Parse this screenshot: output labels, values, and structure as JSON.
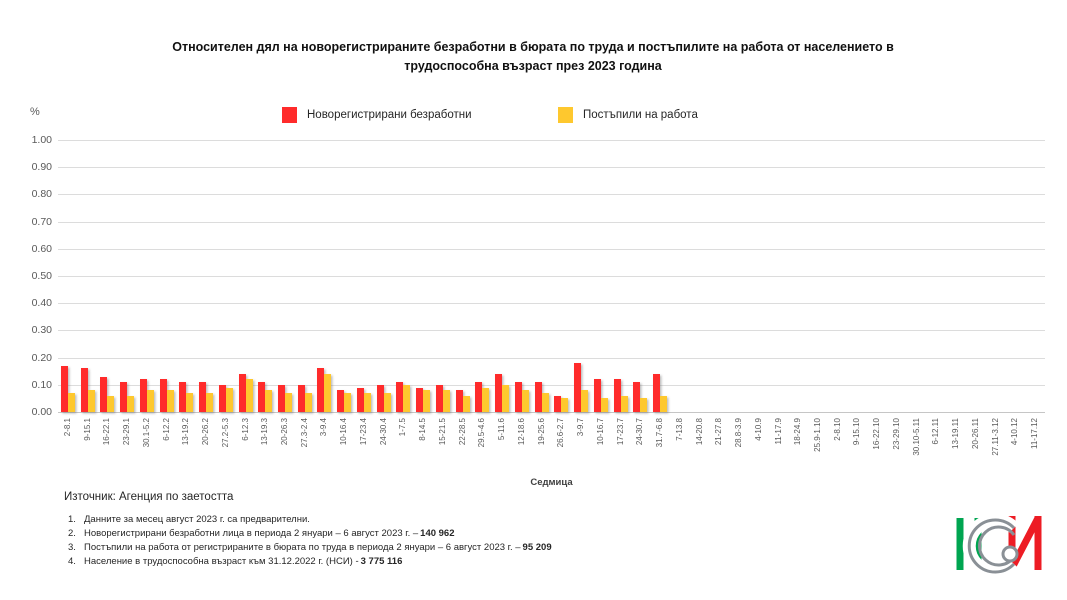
{
  "title": "Относителен дял на новорегистрираните безработни в бюрата по труда и постъпилите на работа от населението в трудоспособна възраст през 2023 година",
  "y_axis": {
    "unit": "%",
    "tick_labels": [
      "1.00",
      "0.90",
      "0.80",
      "0.70",
      "0.60",
      "0.50",
      "0.40",
      "0.30",
      "0.20",
      "0.10",
      "0.00"
    ]
  },
  "legend": [
    {
      "label": "Новорегистрирани безработни",
      "color": "#ff2b2b"
    },
    {
      "label": "Постъпили на работа",
      "color": "#fec82e"
    }
  ],
  "chart_data": {
    "type": "bar",
    "title": "Относителен дял на новорегистрираните безработни в бюрата по труда и постъпилите на работа от населението в трудоспособна възраст през 2023 година",
    "xlabel": "Седмица",
    "ylabel": "%",
    "ylim": [
      0,
      1.0
    ],
    "ytick_step": 0.1,
    "grid": true,
    "legend_position": "top",
    "categories": [
      "2-8.1",
      "9-15.1",
      "16-22.1",
      "23-29.1",
      "30.1-5.2",
      "6-12.2",
      "13-19.2",
      "20-26.2",
      "27.2-5.3",
      "6-12.3",
      "13-19.3",
      "20-26.3",
      "27.3-2.4",
      "3-9.4",
      "10-16.4",
      "17-23.4",
      "24-30.4",
      "1-7.5",
      "8-14.5",
      "15-21.5",
      "22-28.5",
      "29.5-4.6",
      "5-11.6",
      "12-18.6",
      "19-25.6",
      "26.6-2.7",
      "3-9.7",
      "10-16.7",
      "17-23.7",
      "24-30.7",
      "31.7-6.8",
      "7-13.8",
      "14-20.8",
      "21-27.8",
      "28.8-3.9",
      "4-10.9",
      "11-17.9",
      "18-24.9",
      "25.9-1.10",
      "2-8.10",
      "9-15.10",
      "16-22.10",
      "23-29.10",
      "30.10-5.11",
      "6-12.11",
      "13-19.11",
      "20-26.11",
      "27.11-3.12",
      "4-10.12",
      "11-17.12"
    ],
    "series": [
      {
        "name": "Новорегистрирани безработни",
        "color": "#ff2b2b",
        "values": [
          0.17,
          0.16,
          0.13,
          0.11,
          0.12,
          0.12,
          0.11,
          0.11,
          0.1,
          0.14,
          0.11,
          0.1,
          0.1,
          0.16,
          0.08,
          0.09,
          0.1,
          0.11,
          0.09,
          0.1,
          0.08,
          0.11,
          0.14,
          0.11,
          0.11,
          0.06,
          0.18,
          0.12,
          0.12,
          0.11,
          0.14,
          null,
          null,
          null,
          null,
          null,
          null,
          null,
          null,
          null,
          null,
          null,
          null,
          null,
          null,
          null,
          null,
          null,
          null,
          null
        ]
      },
      {
        "name": "Постъпили на работа",
        "color": "#fec82e",
        "values": [
          0.07,
          0.08,
          0.06,
          0.06,
          0.08,
          0.08,
          0.07,
          0.07,
          0.09,
          0.12,
          0.08,
          0.07,
          0.07,
          0.14,
          0.07,
          0.07,
          0.07,
          0.1,
          0.08,
          0.08,
          0.06,
          0.09,
          0.1,
          0.08,
          0.07,
          0.05,
          0.08,
          0.05,
          0.06,
          0.05,
          0.06,
          null,
          null,
          null,
          null,
          null,
          null,
          null,
          null,
          null,
          null,
          null,
          null,
          null,
          null,
          null,
          null,
          null,
          null,
          null
        ]
      }
    ]
  },
  "source": "Източник: Агенция по заетостта",
  "notes": [
    {
      "num": "1.",
      "text": "Данните за месец август 2023 г. са предварителни.",
      "bold": ""
    },
    {
      "num": "2.",
      "text": "Новорегистрирани безработни лица в периода 2 януари – 6 август 2023 г. –",
      "bold": "140 962"
    },
    {
      "num": "3.",
      "text": "Постъпили на работа от регистрираните в бюрата по труда в периода 2 януари – 6 август 2023 г. –",
      "bold": "95 209"
    },
    {
      "num": "4.",
      "text": "Население в трудоспособна възраст към 31.12.2022 г. (НСИ)  -",
      "bold": "3 775 116"
    }
  ],
  "logo": {
    "text": "НСИ",
    "green": "#00a551",
    "red": "#ed1c24",
    "gray": "#8a9096"
  }
}
